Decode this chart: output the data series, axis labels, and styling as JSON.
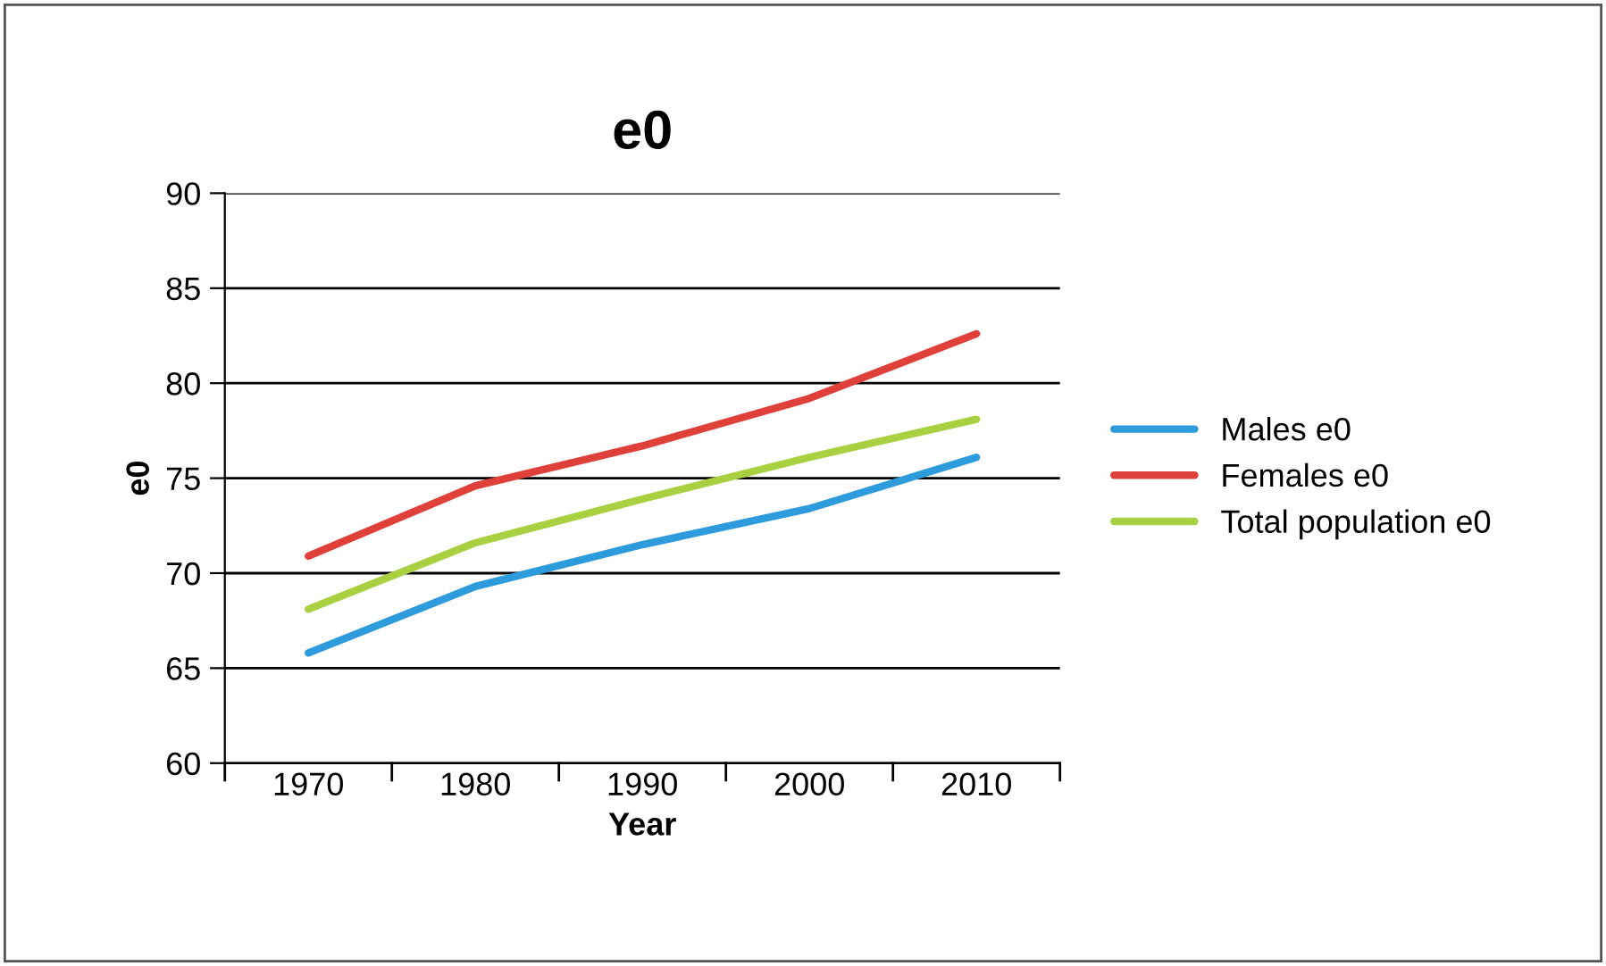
{
  "chart_data": {
    "type": "line",
    "title": "e0",
    "xlabel": "Year",
    "ylabel": "e0",
    "categories": [
      "1970",
      "1980",
      "1990",
      "2000",
      "2010"
    ],
    "series": [
      {
        "name": "Males e0",
        "color": "#2e9bdc",
        "values": [
          65.8,
          69.3,
          71.5,
          73.4,
          76.1
        ]
      },
      {
        "name": "Females e0",
        "color": "#e0403a",
        "values": [
          70.9,
          74.6,
          76.7,
          79.2,
          82.6
        ]
      },
      {
        "name": "Total population e0",
        "color": "#a8d040",
        "values": [
          68.1,
          71.6,
          73.9,
          76.1,
          78.1
        ]
      }
    ],
    "ylim": [
      60,
      90
    ],
    "yticks": [
      60,
      65,
      70,
      75,
      80,
      85,
      90
    ],
    "grid": "y",
    "legend": "right",
    "marker": "none",
    "line_style": "solid"
  }
}
